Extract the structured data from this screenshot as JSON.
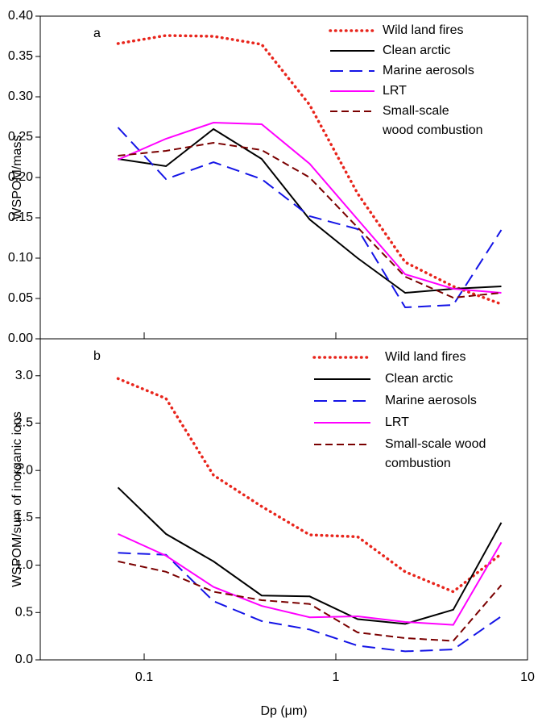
{
  "chart_data": [
    {
      "type": "line",
      "panel_label": "a",
      "y_label": "WSPOM/mass",
      "log_x": true,
      "legend": "upper right",
      "x": [
        0.073,
        0.13,
        0.23,
        0.41,
        0.73,
        1.3,
        2.3,
        4.1,
        7.3
      ],
      "xlim": [
        0.0287,
        10
      ],
      "xticks": [
        0.1,
        1,
        10
      ],
      "ylim": [
        0,
        0.4
      ],
      "yticks": [
        {
          "value": 0,
          "label": "0.00"
        },
        {
          "value": 0.05,
          "label": "0.05"
        },
        {
          "value": 0.1,
          "label": "0.10"
        },
        {
          "value": 0.15,
          "label": "0.15"
        },
        {
          "value": 0.2,
          "label": "0.20"
        },
        {
          "value": 0.25,
          "label": "0.25"
        },
        {
          "value": 0.3,
          "label": "0.30"
        },
        {
          "value": 0.35,
          "label": "0.35"
        },
        {
          "value": 0.4,
          "label": "0.40"
        }
      ],
      "series": [
        {
          "name": "Wild land fires",
          "color": "#e8251c",
          "line_style": "dotted",
          "values": [
            0.366,
            0.376,
            0.375,
            0.365,
            0.29,
            0.18,
            0.095,
            0.065,
            0.043
          ]
        },
        {
          "name": "Clean arctic",
          "color": "#000000",
          "line_style": "solid",
          "values": [
            0.223,
            0.214,
            0.26,
            0.223,
            0.148,
            0.1,
            0.057,
            0.062,
            0.065
          ]
        },
        {
          "name": "Marine aerosols",
          "color": "#1414e6",
          "line_style": "long-dash",
          "values": [
            0.262,
            0.198,
            0.219,
            0.198,
            0.152,
            0.136,
            0.039,
            0.042,
            0.135
          ]
        },
        {
          "name": "LRT",
          "color": "#ff00ff",
          "line_style": "solid",
          "values": [
            0.222,
            0.248,
            0.268,
            0.266,
            0.217,
            0.148,
            0.08,
            0.062,
            0.057
          ]
        },
        {
          "name": "Small-scale\nwood combustion",
          "color": "#7a0000",
          "line_style": "dash",
          "values": [
            0.227,
            0.233,
            0.243,
            0.234,
            0.2,
            0.138,
            0.077,
            0.051,
            0.057
          ]
        }
      ]
    },
    {
      "type": "line",
      "panel_label": "b",
      "y_label": "WSPOM/sum of inorganic ions",
      "x_label": "Dp (μm)",
      "log_x": true,
      "legend": "upper right",
      "x": [
        0.073,
        0.13,
        0.23,
        0.41,
        0.73,
        1.3,
        2.3,
        4.1,
        7.3
      ],
      "xlim": [
        0.0287,
        10
      ],
      "xticks": [
        0.1,
        1,
        10
      ],
      "ylim": [
        0,
        3.39
      ],
      "yticks": [
        {
          "value": 0,
          "label": "0.0"
        },
        0.5,
        {
          "value": 1,
          "label": "1.0"
        },
        1.5,
        {
          "value": 2,
          "label": "2.0"
        },
        2.5,
        {
          "value": 3,
          "label": "3.0"
        }
      ],
      "series": [
        {
          "name": "Wild land fires",
          "color": "#e8251c",
          "line_style": "dotted",
          "values": [
            2.97,
            2.76,
            1.95,
            1.62,
            1.32,
            1.3,
            0.93,
            0.72,
            1.12
          ]
        },
        {
          "name": "Clean arctic",
          "color": "#000000",
          "line_style": "solid",
          "values": [
            1.82,
            1.33,
            1.04,
            0.68,
            0.67,
            0.43,
            0.38,
            0.53,
            1.45
          ]
        },
        {
          "name": "Marine aerosols",
          "color": "#1414e6",
          "line_style": "long-dash",
          "values": [
            1.13,
            1.11,
            0.62,
            0.41,
            0.32,
            0.15,
            0.09,
            0.11,
            0.46
          ]
        },
        {
          "name": "LRT",
          "color": "#ff00ff",
          "line_style": "solid",
          "values": [
            1.33,
            1.1,
            0.77,
            0.57,
            0.45,
            0.46,
            0.4,
            0.37,
            1.24
          ]
        },
        {
          "name": "Small-scale wood\ncombustion",
          "color": "#7a0000",
          "line_style": "dash",
          "values": [
            1.04,
            0.93,
            0.72,
            0.63,
            0.59,
            0.29,
            0.23,
            0.2,
            0.79
          ]
        }
      ]
    }
  ]
}
